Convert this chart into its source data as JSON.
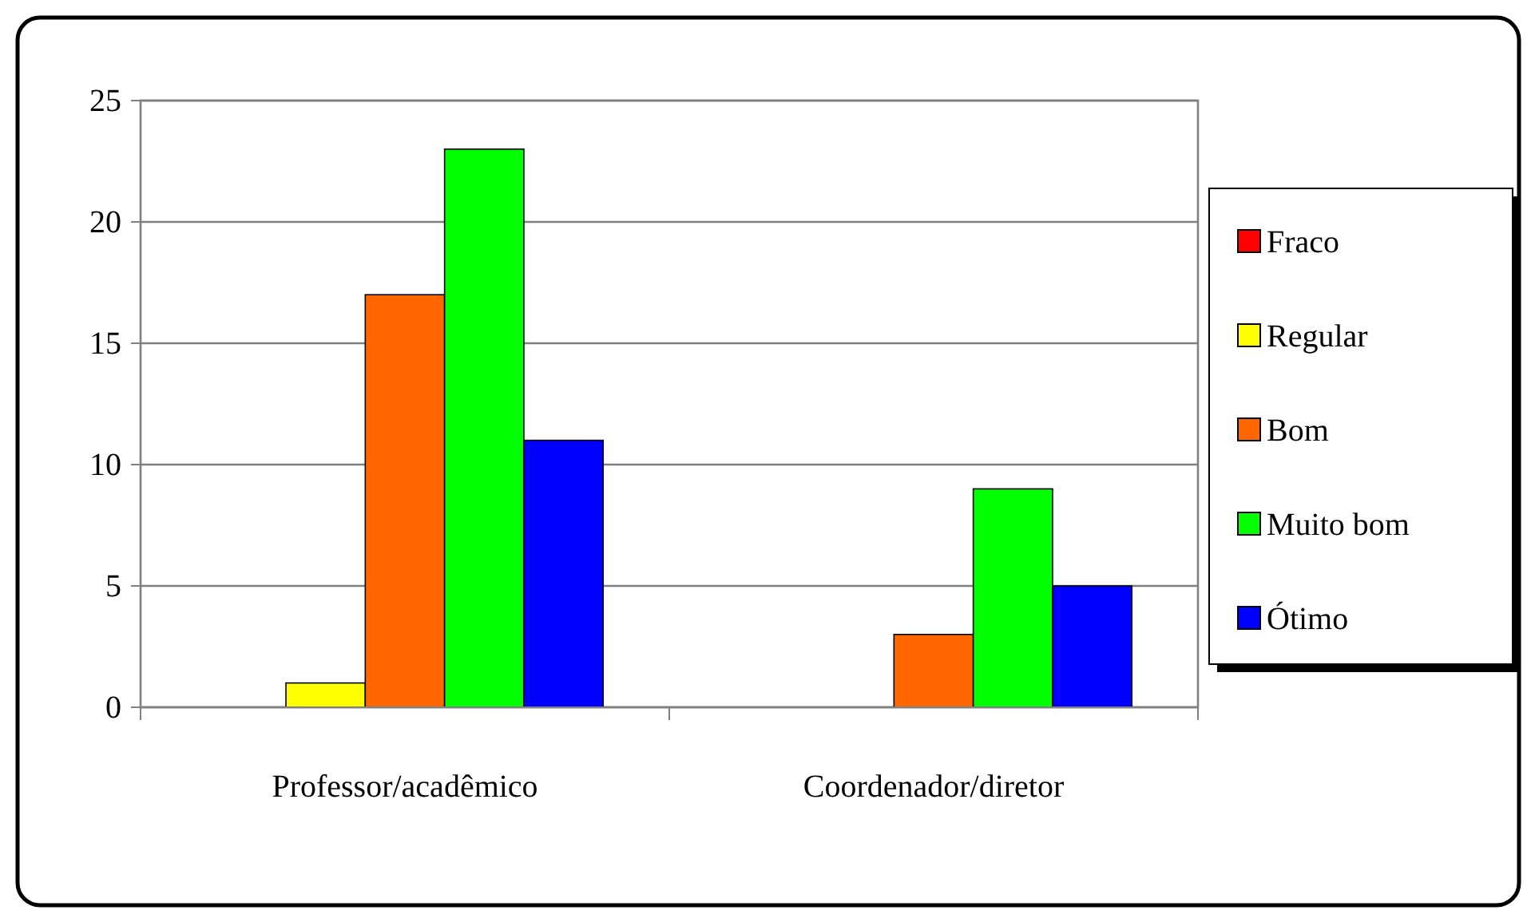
{
  "chart_data": {
    "type": "bar",
    "categories": [
      "Professor/acadêmico",
      "Coordenador/diretor"
    ],
    "series": [
      {
        "name": "Fraco",
        "color": "#ff0000",
        "values": [
          0,
          0
        ]
      },
      {
        "name": "Regular",
        "color": "#ffff00",
        "values": [
          1,
          0
        ]
      },
      {
        "name": "Bom",
        "color": "#ff6600",
        "values": [
          17,
          3
        ]
      },
      {
        "name": "Muito bom",
        "color": "#00ff00",
        "values": [
          23,
          9
        ]
      },
      {
        "name": "Ótimo",
        "color": "#0000ff",
        "values": [
          11,
          5
        ]
      }
    ],
    "ylim": [
      0,
      25
    ],
    "yticks": [
      0,
      5,
      10,
      15,
      20,
      25
    ],
    "grid": "y",
    "legend": "right"
  }
}
